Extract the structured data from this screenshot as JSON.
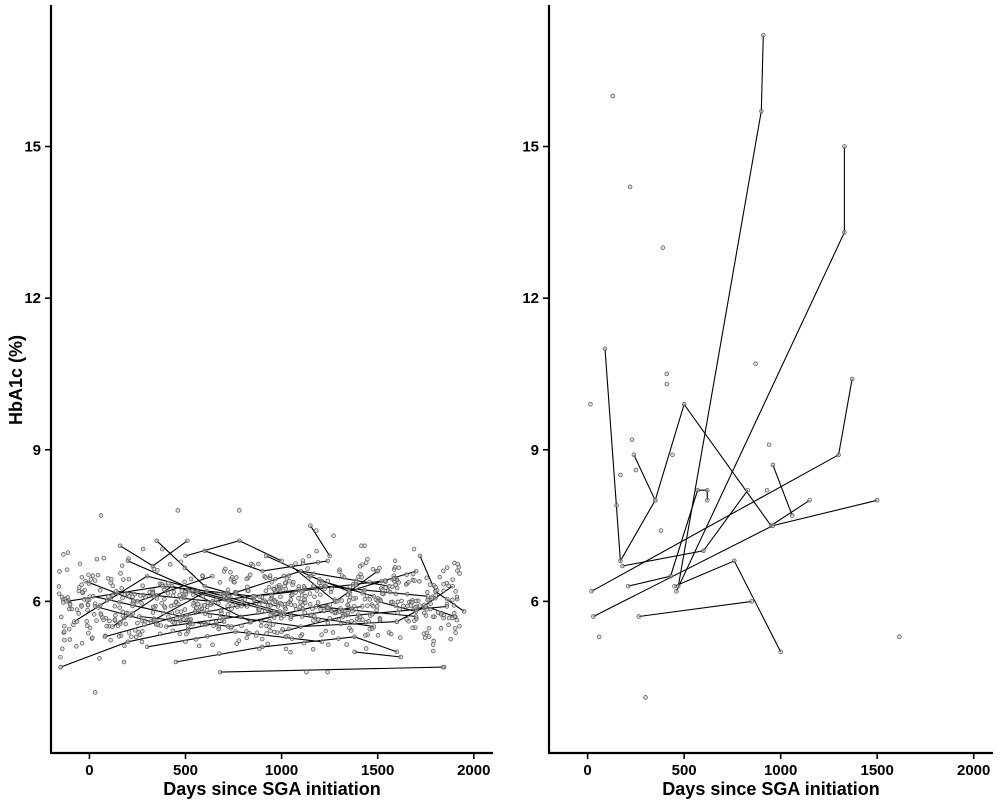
{
  "chart_data": [
    {
      "type": "scatter",
      "panel": "left",
      "ylabel": "HbA1c (%)",
      "xlabel": "Days since SGA initiation",
      "xlim": [
        -200,
        2100
      ],
      "ylim": [
        3.0,
        17.8
      ],
      "xticks": [
        0,
        500,
        1000,
        1500,
        2000
      ],
      "xtick_labels": [
        "0",
        "500",
        "1000",
        "1500",
        "2000"
      ],
      "yticks": [
        6,
        9,
        12,
        15
      ],
      "ytick_labels": [
        "6",
        "9",
        "12",
        "15"
      ],
      "grid": false,
      "series": [
        {
          "type": "scatter",
          "seed": 7,
          "n": 700,
          "x_range": [
            -160,
            1940
          ],
          "y_center": 5.95,
          "y_spread": 0.42,
          "y_min": 4.6,
          "y_max": 7.1
        },
        {
          "type": "points",
          "points": [
            [
              -150,
              4.7
            ],
            [
              60,
              7.7
            ],
            [
              460,
              7.8
            ],
            [
              780,
              7.8
            ],
            [
              1180,
              7.4
            ],
            [
              1270,
              7.3
            ],
            [
              1845,
              4.7
            ],
            [
              30,
              4.2
            ],
            [
              1240,
              4.6
            ],
            [
              180,
              4.8
            ]
          ]
        },
        {
          "type": "lines",
          "lines": [
            [
              [
                -150,
                4.7
              ],
              [
                200,
                5.2
              ],
              [
                700,
                5.6
              ]
            ],
            [
              [
                20,
                6.1
              ],
              [
                480,
                5.7
              ],
              [
                900,
                6.0
              ]
            ],
            [
              [
                120,
                5.5
              ],
              [
                430,
                6.3
              ],
              [
                820,
                5.9
              ]
            ],
            [
              [
                200,
                6.8
              ],
              [
                560,
                6.2
              ],
              [
                1050,
                5.7
              ],
              [
                1420,
                5.9
              ]
            ],
            [
              [
                -80,
                5.6
              ],
              [
                300,
                6.5
              ],
              [
                700,
                6.1
              ]
            ],
            [
              [
                350,
                7.2
              ],
              [
                600,
                6.3
              ],
              [
                980,
                5.9
              ]
            ],
            [
              [
                680,
                4.6
              ],
              [
                1840,
                4.7
              ]
            ],
            [
              [
                1380,
                5.0
              ],
              [
                1620,
                4.9
              ]
            ],
            [
              [
                1720,
                6.9
              ],
              [
                1800,
                6.2
              ],
              [
                1950,
                5.8
              ]
            ],
            [
              [
                300,
                5.1
              ],
              [
                760,
                5.4
              ],
              [
                1210,
                5.2
              ]
            ],
            [
              [
                450,
                4.8
              ],
              [
                900,
                5.1
              ],
              [
                1380,
                5.3
              ],
              [
                1600,
                5.0
              ]
            ],
            [
              [
                600,
                7.0
              ],
              [
                900,
                6.6
              ],
              [
                1240,
                6.8
              ]
            ],
            [
              [
                1150,
                6.5
              ],
              [
                1350,
                6.2
              ],
              [
                1700,
                6.6
              ]
            ],
            [
              [
                920,
                6.9
              ],
              [
                1210,
                6.4
              ],
              [
                1480,
                6.1
              ]
            ],
            [
              [
                500,
                6.9
              ],
              [
                780,
                7.2
              ],
              [
                1000,
                6.8
              ]
            ],
            [
              [
                -20,
                6.4
              ],
              [
                250,
                6.0
              ],
              [
                640,
                6.5
              ]
            ],
            [
              [
                80,
                5.3
              ],
              [
                550,
                5.8
              ],
              [
                1100,
                5.5
              ],
              [
                1600,
                5.6
              ]
            ],
            [
              [
                140,
                6.2
              ],
              [
                640,
                6.0
              ],
              [
                1230,
                6.3
              ],
              [
                1760,
                6.1
              ]
            ],
            [
              [
                260,
                5.7
              ],
              [
                740,
                5.5
              ],
              [
                1180,
                5.9
              ],
              [
                1700,
                5.7
              ]
            ],
            [
              [
                -120,
                6.0
              ],
              [
                380,
                6.3
              ],
              [
                860,
                6.1
              ],
              [
                1520,
                6.4
              ]
            ],
            [
              [
                400,
                5.5
              ],
              [
                960,
                5.8
              ],
              [
                1480,
                5.5
              ]
            ],
            [
              [
                700,
                6.1
              ],
              [
                1100,
                6.6
              ],
              [
                1560,
                6.3
              ]
            ],
            [
              [
                1000,
                5.4
              ],
              [
                1320,
                5.7
              ],
              [
                1860,
                5.9
              ]
            ],
            [
              [
                1150,
                7.5
              ],
              [
                1250,
                6.9
              ]
            ],
            [
              [
                1050,
                6.7
              ],
              [
                1280,
                6.0
              ],
              [
                1500,
                6.6
              ]
            ],
            [
              [
                520,
                6.2
              ],
              [
                840,
                5.6
              ],
              [
                1290,
                6.0
              ]
            ],
            [
              [
                30,
                5.9
              ],
              [
                320,
                5.6
              ],
              [
                610,
                6.2
              ],
              [
                990,
                5.8
              ]
            ],
            [
              [
                1500,
                6.0
              ],
              [
                1700,
                5.8
              ],
              [
                1890,
                6.3
              ]
            ],
            [
              [
                1600,
                5.6
              ],
              [
                1750,
                5.9
              ],
              [
                1900,
                5.7
              ]
            ],
            [
              [
                160,
                7.1
              ],
              [
                330,
                6.7
              ],
              [
                510,
                7.2
              ]
            ]
          ]
        }
      ]
    },
    {
      "type": "line",
      "panel": "right",
      "ylabel": "",
      "xlabel": "Days since SGA initiation",
      "xlim": [
        -200,
        2100
      ],
      "ylim": [
        3.0,
        17.8
      ],
      "xticks": [
        0,
        500,
        1000,
        1500,
        2000
      ],
      "xtick_labels": [
        "0",
        "500",
        "1000",
        "1500",
        "2000"
      ],
      "yticks": [
        6,
        9,
        12,
        15
      ],
      "ytick_labels": [
        "6",
        "9",
        "12",
        "15"
      ],
      "grid": false,
      "series": [
        {
          "type": "lines",
          "lines": [
            [
              [
                90,
                11.0
              ],
              [
                170,
                6.8
              ],
              [
                350,
                8.0
              ],
              [
                500,
                9.9
              ],
              [
                950,
                7.5
              ],
              [
                1150,
                8.0
              ]
            ],
            [
              [
                470,
                6.3
              ],
              [
                900,
                15.7
              ],
              [
                910,
                17.2
              ]
            ],
            [
              [
                460,
                6.2
              ],
              [
                1330,
                13.3
              ],
              [
                1330,
                15.0
              ]
            ],
            [
              [
                20,
                6.2
              ],
              [
                1300,
                8.9
              ],
              [
                1370,
                10.4
              ]
            ],
            [
              [
                30,
                5.7
              ],
              [
                960,
                7.5
              ],
              [
                1500,
                8.0
              ]
            ],
            [
              [
                180,
                6.7
              ],
              [
                600,
                7.0
              ],
              [
                830,
                8.2
              ]
            ],
            [
              [
                210,
                6.3
              ],
              [
                430,
                6.5
              ],
              [
                570,
                8.2
              ],
              [
                620,
                8.2
              ],
              [
                620,
                8.0
              ]
            ],
            [
              [
                265,
                5.7
              ],
              [
                850,
                6.0
              ]
            ],
            [
              [
                450,
                6.3
              ],
              [
                760,
                6.8
              ],
              [
                1000,
                5.0
              ]
            ],
            [
              [
                960,
                8.7
              ],
              [
                1060,
                7.7
              ]
            ],
            [
              [
                240,
                8.9
              ],
              [
                350,
                8.0
              ]
            ]
          ]
        },
        {
          "type": "points",
          "points": [
            [
              15,
              9.9
            ],
            [
              130,
              16.0
            ],
            [
              220,
              14.2
            ],
            [
              390,
              13.0
            ],
            [
              300,
              4.1
            ],
            [
              60,
              5.3
            ],
            [
              1615,
              5.3
            ],
            [
              870,
              10.7
            ],
            [
              410,
              10.3
            ],
            [
              410,
              10.5
            ],
            [
              230,
              9.2
            ],
            [
              940,
              9.1
            ],
            [
              440,
              8.9
            ],
            [
              150,
              7.9
            ],
            [
              170,
              8.5
            ],
            [
              380,
              7.4
            ],
            [
              930,
              8.2
            ],
            [
              250,
              8.6
            ]
          ]
        }
      ]
    }
  ]
}
